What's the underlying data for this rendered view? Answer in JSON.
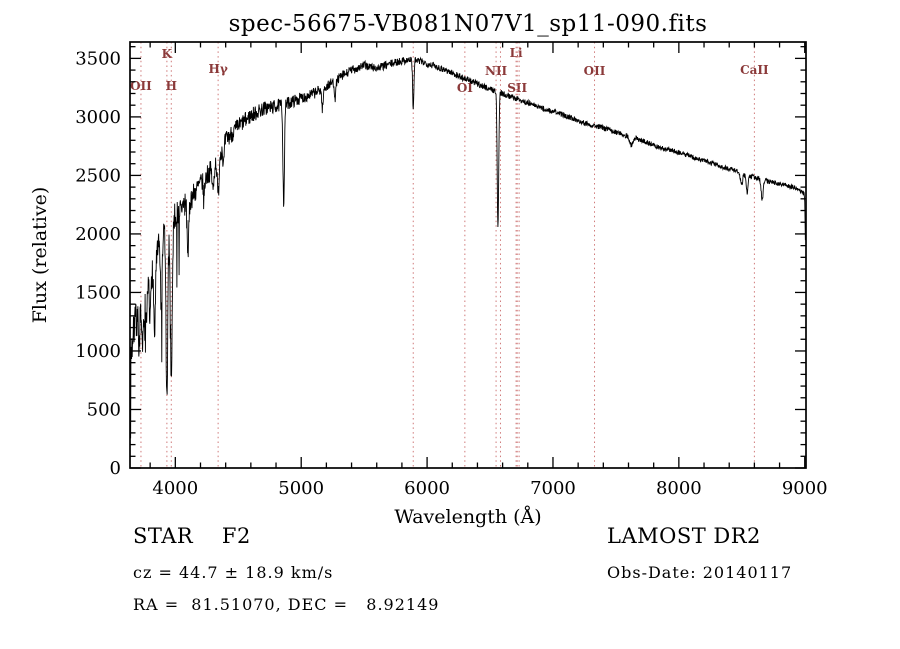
{
  "chart_data": {
    "type": "line",
    "title": "spec-56675-VB081N07V1_sp11-090.fits",
    "xlabel": "Wavelength (Å)",
    "ylabel": "Flux (relative)",
    "xlim": [
      3640,
      9010
    ],
    "ylim": [
      0,
      3640
    ],
    "x_ticks": [
      4000,
      5000,
      6000,
      7000,
      8000,
      9000
    ],
    "y_ticks": [
      0,
      500,
      1000,
      1500,
      2000,
      2500,
      3000,
      3500
    ],
    "x_minor_step": 200,
    "y_minor_step": 100,
    "grid": "off",
    "colors": {
      "spectrum": "#000000",
      "axis": "#000000",
      "marker_line": "#cf7a7a",
      "marker_label": "#8b3a3a"
    },
    "wl_start": 3645,
    "wl_end": 9005,
    "wl_step": 2.5,
    "continuum": [
      [
        3645,
        950
      ],
      [
        3680,
        1250
      ],
      [
        3720,
        1320
      ],
      [
        3760,
        1430
      ],
      [
        3800,
        1650
      ],
      [
        3840,
        1720
      ],
      [
        3880,
        1950
      ],
      [
        3920,
        2060
      ],
      [
        3960,
        2060
      ],
      [
        4000,
        2160
      ],
      [
        4060,
        2230
      ],
      [
        4120,
        2300
      ],
      [
        4200,
        2430
      ],
      [
        4300,
        2570
      ],
      [
        4400,
        2800
      ],
      [
        4500,
        2920
      ],
      [
        4600,
        3010
      ],
      [
        4700,
        3070
      ],
      [
        4800,
        3090
      ],
      [
        4900,
        3120
      ],
      [
        5000,
        3160
      ],
      [
        5100,
        3200
      ],
      [
        5200,
        3260
      ],
      [
        5300,
        3330
      ],
      [
        5400,
        3400
      ],
      [
        5500,
        3440
      ],
      [
        5600,
        3415
      ],
      [
        5700,
        3450
      ],
      [
        5800,
        3480
      ],
      [
        5880,
        3490
      ],
      [
        5960,
        3470
      ],
      [
        6050,
        3440
      ],
      [
        6150,
        3400
      ],
      [
        6250,
        3350
      ],
      [
        6350,
        3305
      ],
      [
        6450,
        3260
      ],
      [
        6550,
        3220
      ],
      [
        6650,
        3180
      ],
      [
        6750,
        3140
      ],
      [
        6850,
        3100
      ],
      [
        6950,
        3060
      ],
      [
        7050,
        3030
      ],
      [
        7150,
        2990
      ],
      [
        7250,
        2950
      ],
      [
        7350,
        2920
      ],
      [
        7450,
        2890
      ],
      [
        7550,
        2850
      ],
      [
        7650,
        2820
      ],
      [
        7750,
        2780
      ],
      [
        7850,
        2740
      ],
      [
        7950,
        2710
      ],
      [
        8050,
        2680
      ],
      [
        8150,
        2640
      ],
      [
        8250,
        2610
      ],
      [
        8350,
        2570
      ],
      [
        8450,
        2540
      ],
      [
        8550,
        2500
      ],
      [
        8650,
        2470
      ],
      [
        8750,
        2440
      ],
      [
        8850,
        2420
      ],
      [
        8950,
        2380
      ],
      [
        8995,
        2350
      ],
      [
        9000,
        2280
      ],
      [
        9005,
        1950
      ]
    ],
    "absorption_lines": [
      [
        3712,
        260,
        5
      ],
      [
        3735,
        330,
        5
      ],
      [
        3750,
        280,
        5
      ],
      [
        3771,
        360,
        5
      ],
      [
        3798,
        430,
        5
      ],
      [
        3835,
        570,
        6
      ],
      [
        3889,
        690,
        6
      ],
      [
        3933,
        1500,
        7
      ],
      [
        3968,
        1300,
        7
      ],
      [
        4101,
        430,
        7
      ],
      [
        4227,
        180,
        5
      ],
      [
        4300,
        200,
        7
      ],
      [
        4340,
        340,
        7
      ],
      [
        4383,
        180,
        5
      ],
      [
        4861,
        840,
        6
      ],
      [
        5169,
        170,
        6
      ],
      [
        5270,
        140,
        6
      ],
      [
        5890,
        430,
        5
      ],
      [
        6563,
        1150,
        6
      ],
      [
        7620,
        70,
        12
      ],
      [
        8498,
        110,
        8
      ],
      [
        8542,
        150,
        8
      ],
      [
        8662,
        170,
        8
      ]
    ],
    "noise": {
      "seed": 7,
      "base": 20,
      "blue": 140,
      "decay": 900,
      "spike_below": 4080,
      "spike_prob": 0.07,
      "spike_min": 150,
      "spike_extra": 400
    },
    "line_markers": [
      {
        "label": "OII",
        "wavelength": 3727,
        "label_y": 90
      },
      {
        "label": "K",
        "wavelength": 3933,
        "label_y": 58
      },
      {
        "label": "H",
        "wavelength": 3968,
        "label_y": 90
      },
      {
        "label": "Hγ",
        "wavelength": 4340,
        "label_y": 73
      },
      {
        "label": "",
        "wavelength": 5890,
        "label_y": 0
      },
      {
        "label": "OI",
        "wavelength": 6300,
        "label_y": 92
      },
      {
        "label": "NII",
        "wavelength": 6548,
        "label_y": 75
      },
      {
        "label": "",
        "wavelength": 6583,
        "label_y": 0
      },
      {
        "label": "Li",
        "wavelength": 6707,
        "label_y": 57
      },
      {
        "label": "SII",
        "wavelength": 6716,
        "label_y": 92
      },
      {
        "label": "",
        "wavelength": 6731,
        "label_y": 0
      },
      {
        "label": "OII",
        "wavelength": 7330,
        "label_y": 75
      },
      {
        "label": "CaII",
        "wavelength": 8600,
        "label_y": 74
      }
    ]
  },
  "annotations": {
    "classification": "STAR    F2",
    "survey": "LAMOST DR2",
    "cz": "cz = 44.7 ± 18.9 km/s",
    "obs_date": "Obs-Date: 20140117",
    "ra_dec": "RA =  81.51070, DEC =   8.92149"
  }
}
